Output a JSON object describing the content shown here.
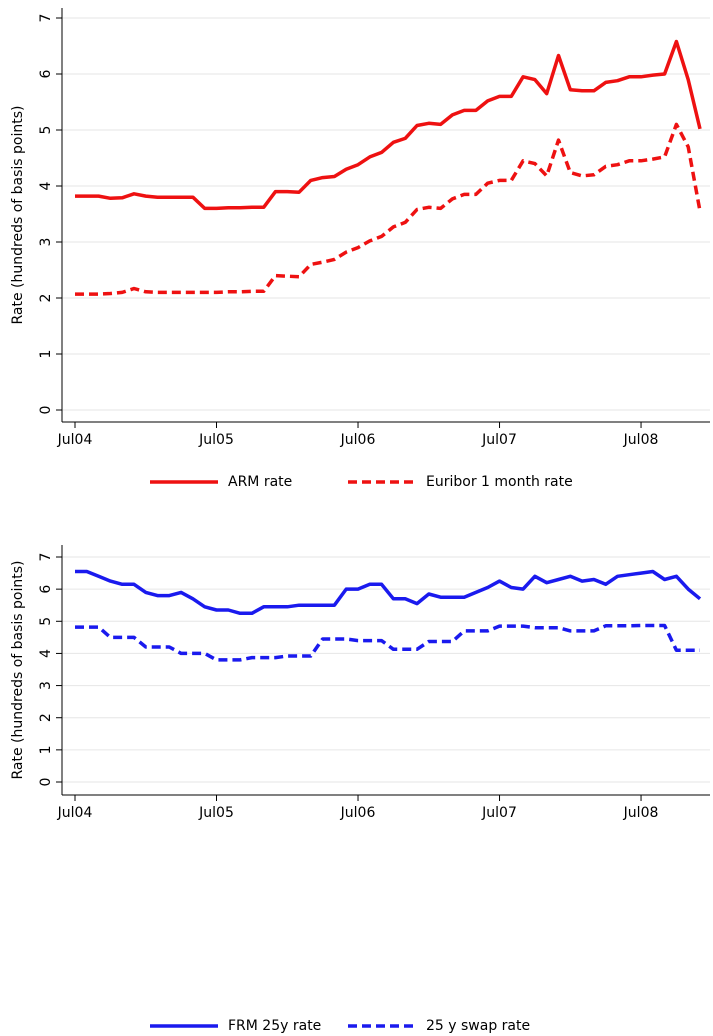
{
  "chart_data": [
    {
      "type": "line",
      "ylabel": "Rate (hundreds of basis points)",
      "x": [
        "Jul04",
        "Aug04",
        "Sep04",
        "Oct04",
        "Nov04",
        "Dec04",
        "Jan05",
        "Feb05",
        "Mar05",
        "Apr05",
        "May05",
        "Jun05",
        "Jul05",
        "Aug05",
        "Sep05",
        "Oct05",
        "Nov05",
        "Dec05",
        "Jan06",
        "Feb06",
        "Mar06",
        "Apr06",
        "May06",
        "Jun06",
        "Jul06",
        "Aug06",
        "Sep06",
        "Oct06",
        "Nov06",
        "Dec06",
        "Jan07",
        "Feb07",
        "Mar07",
        "Apr07",
        "May07",
        "Jun07",
        "Jul07",
        "Aug07",
        "Sep07",
        "Oct07",
        "Nov07",
        "Dec07",
        "Jan08",
        "Feb08",
        "Mar08",
        "Apr08",
        "May08",
        "Jun08",
        "Jul08",
        "Aug08",
        "Sep08",
        "Oct08",
        "Nov08",
        "Dec08"
      ],
      "xticks": [
        "Jul04",
        "Jul05",
        "Jul06",
        "Jul07",
        "Jul08"
      ],
      "ylim": [
        0,
        7
      ],
      "yticks": [
        0,
        1,
        2,
        3,
        4,
        5,
        6,
        7
      ],
      "grid": true,
      "series": [
        {
          "name": "ARM rate",
          "color": "#ee1111",
          "style": "solid",
          "values": [
            3.82,
            3.82,
            3.82,
            3.78,
            3.79,
            3.86,
            3.82,
            3.8,
            3.8,
            3.8,
            3.8,
            3.6,
            3.6,
            3.61,
            3.61,
            3.62,
            3.62,
            3.9,
            3.9,
            3.89,
            4.1,
            4.15,
            4.17,
            4.3,
            4.38,
            4.52,
            4.6,
            4.78,
            4.85,
            5.08,
            5.12,
            5.1,
            5.27,
            5.35,
            5.35,
            5.52,
            5.6,
            5.6,
            5.95,
            5.9,
            5.65,
            6.33,
            5.72,
            5.7,
            5.7,
            5.85,
            5.88,
            5.95,
            5.95,
            5.98,
            6.0,
            6.58,
            5.9,
            5.02
          ]
        },
        {
          "name": "Euribor 1 month rate",
          "color": "#ee1111",
          "style": "dashed",
          "values": [
            2.07,
            2.07,
            2.07,
            2.08,
            2.1,
            2.17,
            2.11,
            2.1,
            2.1,
            2.1,
            2.1,
            2.1,
            2.1,
            2.11,
            2.11,
            2.12,
            2.12,
            2.4,
            2.39,
            2.38,
            2.6,
            2.64,
            2.69,
            2.82,
            2.9,
            3.02,
            3.1,
            3.27,
            3.35,
            3.58,
            3.62,
            3.6,
            3.77,
            3.85,
            3.85,
            4.05,
            4.1,
            4.1,
            4.45,
            4.4,
            4.18,
            4.82,
            4.24,
            4.18,
            4.2,
            4.35,
            4.38,
            4.45,
            4.45,
            4.48,
            4.52,
            5.1,
            4.7,
            3.55
          ]
        }
      ]
    },
    {
      "type": "line",
      "ylabel": "Rate (hundreds of basis points)",
      "x": [
        "Jul04",
        "Aug04",
        "Sep04",
        "Oct04",
        "Nov04",
        "Dec04",
        "Jan05",
        "Feb05",
        "Mar05",
        "Apr05",
        "May05",
        "Jun05",
        "Jul05",
        "Aug05",
        "Sep05",
        "Oct05",
        "Nov05",
        "Dec05",
        "Jan06",
        "Feb06",
        "Mar06",
        "Apr06",
        "May06",
        "Jun06",
        "Jul06",
        "Aug06",
        "Sep06",
        "Oct06",
        "Nov06",
        "Dec06",
        "Jan07",
        "Feb07",
        "Mar07",
        "Apr07",
        "May07",
        "Jun07",
        "Jul07",
        "Aug07",
        "Sep07",
        "Oct07",
        "Nov07",
        "Dec07",
        "Jan08",
        "Feb08",
        "Mar08",
        "Apr08",
        "May08",
        "Jun08",
        "Jul08",
        "Aug08",
        "Sep08",
        "Oct08",
        "Nov08",
        "Dec08"
      ],
      "xticks": [
        "Jul04",
        "Jul05",
        "Jul06",
        "Jul07",
        "Jul08"
      ],
      "ylim": [
        0,
        7
      ],
      "yticks": [
        0,
        1,
        2,
        3,
        4,
        5,
        6,
        7
      ],
      "grid": true,
      "series": [
        {
          "name": "FRM 25y rate",
          "color": "#1a1aee",
          "style": "solid",
          "values": [
            6.55,
            6.55,
            6.4,
            6.25,
            6.15,
            6.15,
            5.9,
            5.8,
            5.8,
            5.9,
            5.7,
            5.45,
            5.35,
            5.35,
            5.25,
            5.25,
            5.45,
            5.45,
            5.45,
            5.5,
            5.5,
            5.5,
            5.5,
            6.0,
            6.0,
            6.15,
            6.15,
            5.7,
            5.7,
            5.55,
            5.85,
            5.75,
            5.75,
            5.75,
            5.9,
            6.05,
            6.25,
            6.05,
            6.0,
            6.4,
            6.2,
            6.3,
            6.4,
            6.25,
            6.3,
            6.15,
            6.4,
            6.45,
            6.5,
            6.55,
            6.3,
            6.4,
            6.0,
            5.7
          ]
        },
        {
          "name": "25 y swap rate",
          "color": "#1a1aee",
          "style": "dashed",
          "values": [
            4.82,
            4.82,
            4.82,
            4.5,
            4.5,
            4.5,
            4.2,
            4.2,
            4.2,
            4.0,
            4.0,
            4.0,
            3.8,
            3.8,
            3.8,
            3.87,
            3.87,
            3.87,
            3.92,
            3.92,
            3.92,
            4.45,
            4.45,
            4.45,
            4.4,
            4.4,
            4.4,
            4.13,
            4.13,
            4.13,
            4.37,
            4.37,
            4.37,
            4.7,
            4.7,
            4.7,
            4.85,
            4.85,
            4.85,
            4.8,
            4.8,
            4.8,
            4.7,
            4.7,
            4.7,
            4.86,
            4.86,
            4.86,
            4.87,
            4.87,
            4.87,
            4.1,
            4.1,
            4.1
          ]
        }
      ]
    }
  ]
}
